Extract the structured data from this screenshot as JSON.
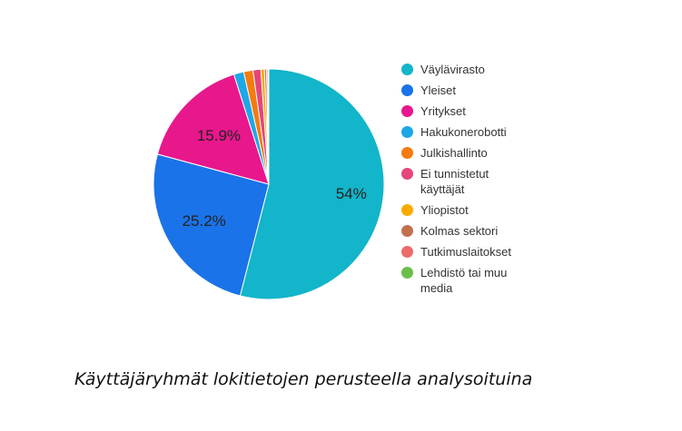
{
  "chart_data": {
    "type": "pie",
    "categories": [
      "Väylävirasto",
      "Yleiset",
      "Yritykset",
      "Hakukonerobotti",
      "Julkishallinto",
      "Ei tunnistetut käyttäjät",
      "Yliopistot",
      "Kolmas sektori",
      "Tutkimuslaitokset",
      "Lehdistö tai muu media"
    ],
    "values": [
      54,
      25.2,
      15.9,
      1.4,
      1.3,
      1.1,
      0.5,
      0.3,
      0.2,
      0.1
    ],
    "data_labels": [
      "54%",
      "25.2%",
      "15.9%",
      "",
      "",
      "",
      "",
      "",
      "",
      ""
    ],
    "colors": [
      "#12B5C9",
      "#1A73E8",
      "#E8178C",
      "#1EA7E6",
      "#F57B10",
      "#E6457A",
      "#F9AB00",
      "#C3704F",
      "#EB6B6B",
      "#6ABF4B"
    ],
    "legend_position": "right",
    "title": ""
  },
  "legend": {
    "items": [
      {
        "label": "Väylävirasto",
        "color": "#12B5C9"
      },
      {
        "label": "Yleiset",
        "color": "#1A73E8"
      },
      {
        "label": "Yritykset",
        "color": "#E8178C"
      },
      {
        "label": "Hakukonerobotti",
        "color": "#1EA7E6"
      },
      {
        "label": "Julkishallinto",
        "color": "#F57B10"
      },
      {
        "label": "Ei tunnistetut käyttäjät",
        "color": "#E6457A"
      },
      {
        "label": "Yliopistot",
        "color": "#F9AB00"
      },
      {
        "label": "Kolmas sektori",
        "color": "#C3704F"
      },
      {
        "label": "Tutkimuslaitokset",
        "color": "#EB6B6B"
      },
      {
        "label": "Lehdistö tai muu media",
        "color": "#6ABF4B"
      }
    ]
  },
  "caption": "Käyttäjäryhmät lokitietojen perusteella analysoituina"
}
